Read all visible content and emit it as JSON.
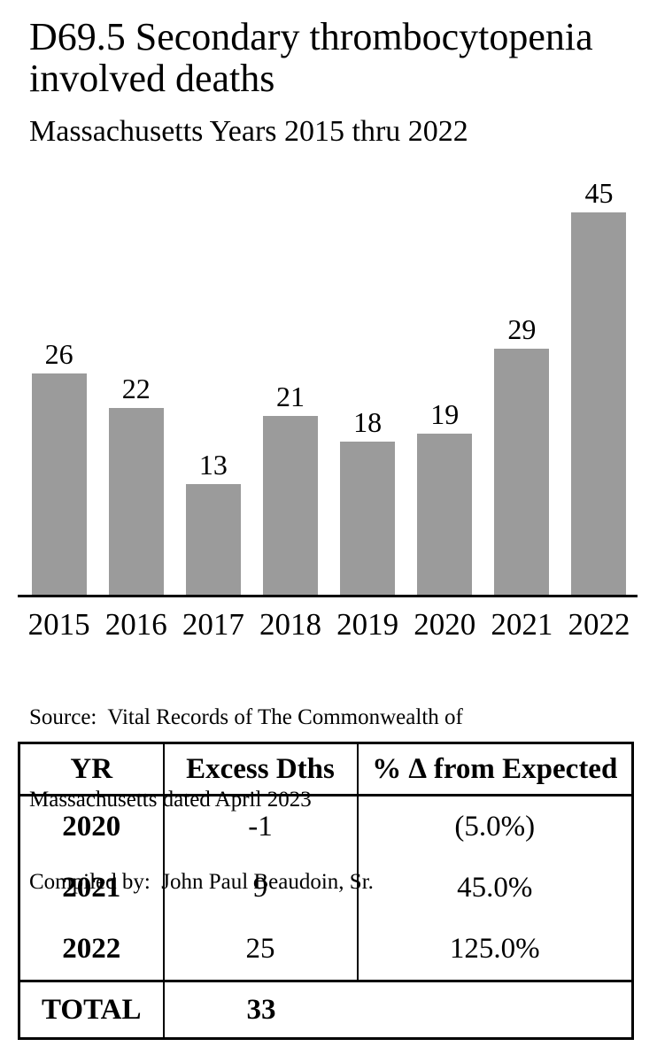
{
  "header": {
    "title": "D69.5 Secondary thrombocytopenia involved deaths",
    "subtitle": "Massachusetts Years 2015 thru 2022"
  },
  "chart_data": {
    "type": "bar",
    "title": "D69.5 Secondary thrombocytopenia involved deaths",
    "subtitle": "Massachusetts Years 2015 thru 2022",
    "categories": [
      "2015",
      "2016",
      "2017",
      "2018",
      "2019",
      "2020",
      "2021",
      "2022"
    ],
    "values": [
      26,
      22,
      13,
      21,
      18,
      19,
      29,
      45
    ],
    "xlabel": "",
    "ylabel": "",
    "ylim": [
      0,
      45
    ],
    "grid": false,
    "legend": false,
    "value_labels": true,
    "bar_color": "#9b9b9b",
    "axis_color": "#000000"
  },
  "source": {
    "line1": "Source:  Vital Records of The Commonwealth of",
    "line2": "Massachusetts dated April 2023",
    "line3": "Compiled by:  John Paul Beaudoin, Sr."
  },
  "table": {
    "headers": [
      "YR",
      "Excess Dths",
      "% ∆ from Expected"
    ],
    "rows": [
      {
        "yr": "2020",
        "excess": "-1",
        "pct": "(5.0%)"
      },
      {
        "yr": "2021",
        "excess": "9",
        "pct": "45.0%"
      },
      {
        "yr": "2022",
        "excess": "25",
        "pct": "125.0%"
      }
    ],
    "total": {
      "label": "TOTAL",
      "value": "33"
    }
  }
}
